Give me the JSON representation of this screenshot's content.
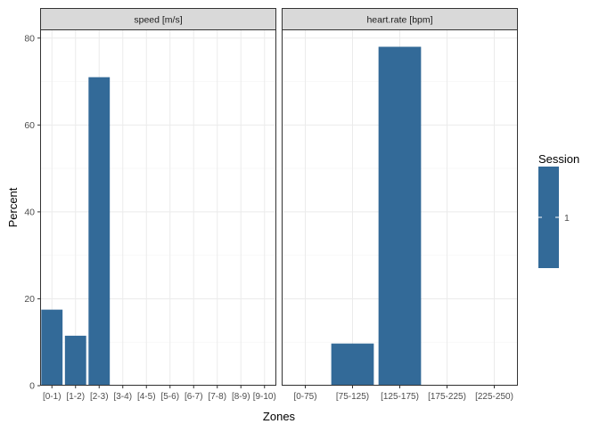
{
  "chart_data": {
    "type": "bar",
    "xlabel": "Zones",
    "ylabel": "Percent",
    "ylim": [
      0,
      82
    ],
    "yticks": [
      0,
      20,
      40,
      60,
      80
    ],
    "grid": true,
    "legend": {
      "title": "Session",
      "position": "right",
      "entries": [
        "1"
      ]
    },
    "colors": {
      "bar": "#336a98",
      "panel_border": "#333333",
      "strip_bg": "#d9d9d9",
      "grid_major": "#ebebeb",
      "grid_minor": "#f5f5f5",
      "text": "#4d4d4d",
      "title_text": "#000000"
    },
    "panels": [
      {
        "strip": "speed [m/s]",
        "categories": [
          "[0-1)",
          "[1-2)",
          "[2-3)",
          "[3-4)",
          "[4-5)",
          "[5-6)",
          "[6-7)",
          "[7-8)",
          "[8-9)",
          "[9-10)"
        ],
        "series": [
          {
            "name": "1",
            "values": [
              17.5,
              11.5,
              71,
              0,
              0,
              0,
              0,
              0,
              0,
              0
            ]
          }
        ]
      },
      {
        "strip": "heart.rate [bpm]",
        "categories": [
          "[0-75)",
          "[75-125)",
          "[125-175)",
          "[175-225)",
          "[225-250)"
        ],
        "series": [
          {
            "name": "1",
            "values": [
              0,
              9.7,
              78,
              0,
              0
            ]
          }
        ]
      }
    ]
  }
}
